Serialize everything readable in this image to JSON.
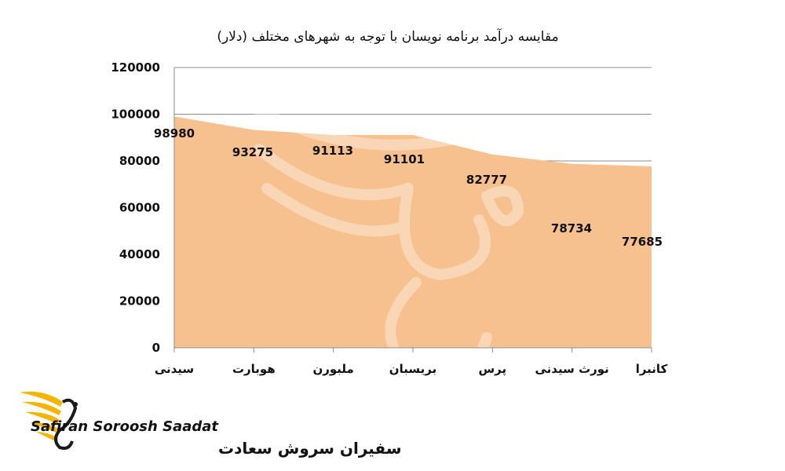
{
  "chart_data": {
    "type": "area",
    "title": "مقایسه درآمد برنامه نویسان با توجه به شهرهای مختلف (دلار)",
    "categories": [
      "سیدنی",
      "هوبارت",
      "ملبورن",
      "بریسبان",
      "پرس",
      "نورث سیدنی",
      "کانبرا"
    ],
    "values": [
      98980,
      93275,
      91113,
      91101,
      82777,
      78734,
      77685
    ],
    "data_labels": [
      "98980",
      "93275",
      "91113",
      "91101",
      "82777",
      "78734",
      "77685"
    ],
    "y_ticks": [
      "0",
      "20000",
      "40000",
      "60000",
      "80000",
      "100000",
      "120000"
    ],
    "ylim": [
      0,
      120000
    ],
    "grid": true,
    "fill_color": "#F7C08F",
    "grid_color": "#8c8c8c"
  },
  "brand": {
    "name_en": "Safiran Soroosh Saadat",
    "name_fa": "سفیران سروش سعادت",
    "accent": "#F5B400"
  }
}
